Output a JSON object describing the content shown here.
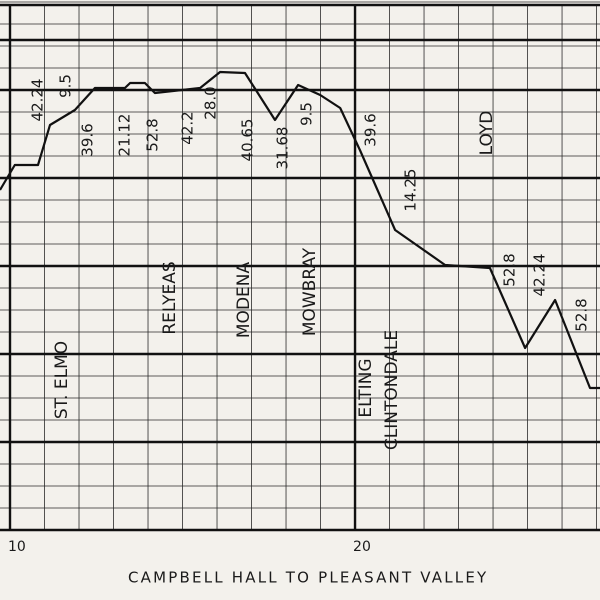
{
  "chart_data": {
    "type": "line",
    "title": "CAMPBELL HALL TO PLEASANT VALLEY",
    "x": [
      9.71,
      10.14,
      10.81,
      11.16,
      11.88,
      12.46,
      13.33,
      13.48,
      13.91,
      14.2,
      15.51,
      16.09,
      16.81,
      17.68,
      18.35,
      18.99,
      19.57,
      20.14,
      21.16,
      22.61,
      23.91,
      24.93,
      25.8,
      26.81,
      27.1
    ],
    "values": [
      340,
      365,
      365,
      405,
      420,
      442,
      442,
      447,
      447,
      437,
      442,
      458,
      457,
      410,
      445,
      435,
      422,
      380,
      300,
      265,
      262,
      182,
      230,
      142,
      142
    ],
    "color": "#111111",
    "xlim": [
      9.71,
      27.1
    ],
    "ylim": [
      0,
      520
    ],
    "xticks": [
      10,
      20
    ],
    "grid": true,
    "stations": [
      "ST. ELMO",
      "RELYEAS",
      "MODENA",
      "MOWBRAY",
      "ELTING",
      "CLINTONDALE",
      "LOYD"
    ],
    "grades": [
      "42.24",
      "9.5",
      "39.6",
      "21.12",
      "52.8",
      "42.2",
      "28.0",
      "40.65",
      "31.68",
      "9.5",
      "39.6",
      "14.25",
      "52.8",
      "42.24",
      "52.8"
    ]
  }
}
